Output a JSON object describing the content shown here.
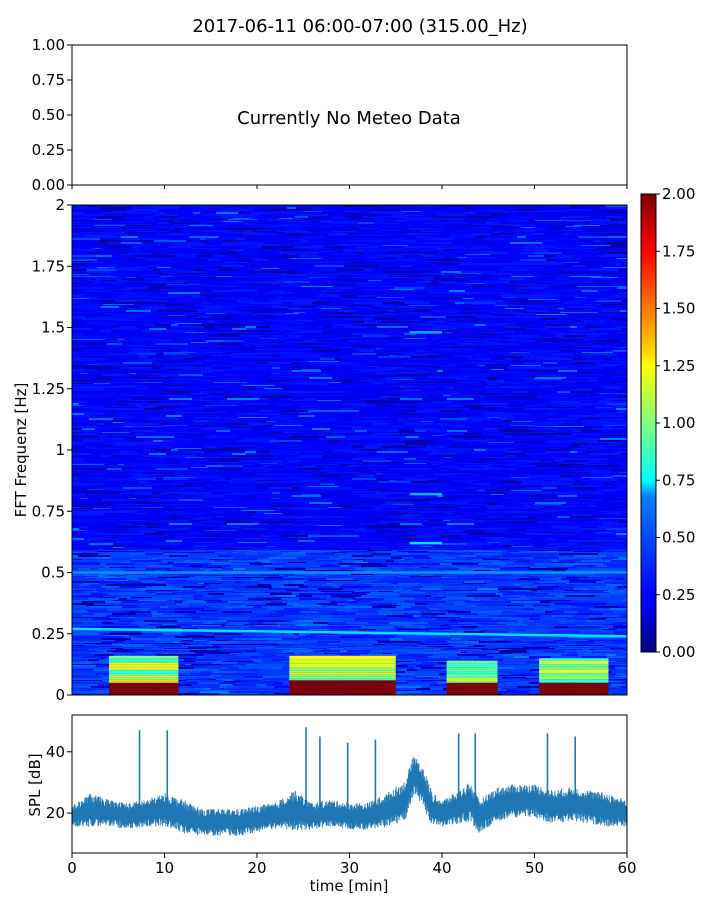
{
  "title": "2017-06-11 06:00-07:00 (315.00_Hz)",
  "chart_data": [
    {
      "type": "line",
      "panel": "meteo",
      "message": "Currently No Meteo Data",
      "ylim": [
        0,
        1
      ],
      "yticks": [
        "0.00",
        "0.25",
        "0.50",
        "0.75",
        "1.00"
      ],
      "xlim": [
        0,
        60
      ],
      "series": []
    },
    {
      "type": "heatmap",
      "panel": "spectrogram",
      "ylabel": "FFT Frequenz [Hz]",
      "xlim": [
        0,
        60
      ],
      "ylim": [
        0,
        2
      ],
      "yticks": [
        "0",
        "0.25",
        "0.5",
        "0.75",
        "1",
        "1.25",
        "1.5",
        "1.75",
        "2"
      ],
      "colormap": "jet",
      "clim": [
        0,
        2
      ],
      "colorbar_ticks": [
        "0.00",
        "0.25",
        "0.50",
        "0.75",
        "1.00",
        "1.25",
        "1.50",
        "1.75",
        "2.00"
      ],
      "bands": [
        {
          "x": [
            4,
            11.5
          ],
          "y": [
            0,
            0.05
          ],
          "value": 2.0
        },
        {
          "x": [
            4,
            11.5
          ],
          "y": [
            0.05,
            0.16
          ],
          "value": 1.05
        },
        {
          "x": [
            23.5,
            35
          ],
          "y": [
            0,
            0.06
          ],
          "value": 2.0
        },
        {
          "x": [
            23.5,
            35
          ],
          "y": [
            0.06,
            0.16
          ],
          "value": 1.0
        },
        {
          "x": [
            40.5,
            46
          ],
          "y": [
            0,
            0.05
          ],
          "value": 2.0
        },
        {
          "x": [
            40.5,
            46
          ],
          "y": [
            0.05,
            0.14
          ],
          "value": 1.0
        },
        {
          "x": [
            50.5,
            58
          ],
          "y": [
            0,
            0.05
          ],
          "value": 2.0
        },
        {
          "x": [
            50.5,
            58
          ],
          "y": [
            0.05,
            0.15
          ],
          "value": 1.0
        }
      ],
      "lines": [
        {
          "x": [
            0,
            60
          ],
          "y": [
            0.27,
            0.24
          ],
          "value": 0.7
        },
        {
          "x": [
            0,
            60
          ],
          "y": [
            0.5,
            0.5
          ],
          "value": 0.55
        },
        {
          "x": [
            36.5,
            40
          ],
          "y": [
            0.62,
            0.62
          ],
          "value": 0.7
        },
        {
          "x": [
            36.5,
            40
          ],
          "y": [
            0.82,
            0.82
          ],
          "value": 0.6
        },
        {
          "x": [
            36.5,
            40
          ],
          "y": [
            1.48,
            1.48
          ],
          "value": 0.6
        }
      ]
    },
    {
      "type": "line",
      "panel": "spl",
      "xlabel": "time [min]",
      "ylabel": "SPL [dB]",
      "xlim": [
        0,
        60
      ],
      "ylim": [
        7,
        52
      ],
      "yticks": [
        "20",
        "40"
      ],
      "xticks": [
        "0",
        "10",
        "20",
        "30",
        "40",
        "50",
        "60"
      ],
      "color": "#1f77b4",
      "series": [
        {
          "x": [
            0,
            2,
            4,
            6,
            8,
            10,
            12,
            14,
            16,
            18,
            20,
            22,
            24,
            25,
            26,
            28,
            30,
            32,
            34,
            36,
            37,
            38,
            39,
            40,
            42,
            43,
            44,
            46,
            48,
            50,
            52,
            54,
            56,
            58,
            60
          ],
          "y": [
            19,
            21,
            20,
            19,
            20,
            21,
            19,
            17,
            17,
            17,
            18,
            19,
            21,
            20,
            19,
            20,
            19,
            19,
            21,
            24,
            33,
            28,
            21,
            20,
            22,
            24,
            19,
            23,
            24,
            24,
            22,
            23,
            22,
            21,
            20
          ],
          "band": [
            3,
            5,
            4,
            4,
            4,
            5,
            5,
            4,
            4,
            4,
            4,
            4,
            6,
            5,
            4,
            4,
            4,
            4,
            5,
            6,
            6,
            6,
            5,
            4,
            5,
            6,
            5,
            5,
            5,
            5,
            5,
            5,
            5,
            5,
            4
          ]
        }
      ],
      "spikes": [
        {
          "x": 7.3,
          "y": 47
        },
        {
          "x": 10.3,
          "y": 47
        },
        {
          "x": 25.3,
          "y": 48
        },
        {
          "x": 26.8,
          "y": 45
        },
        {
          "x": 29.8,
          "y": 43
        },
        {
          "x": 32.8,
          "y": 44
        },
        {
          "x": 41.8,
          "y": 46
        },
        {
          "x": 43.6,
          "y": 46
        },
        {
          "x": 51.4,
          "y": 46
        },
        {
          "x": 54.4,
          "y": 45
        }
      ]
    }
  ]
}
